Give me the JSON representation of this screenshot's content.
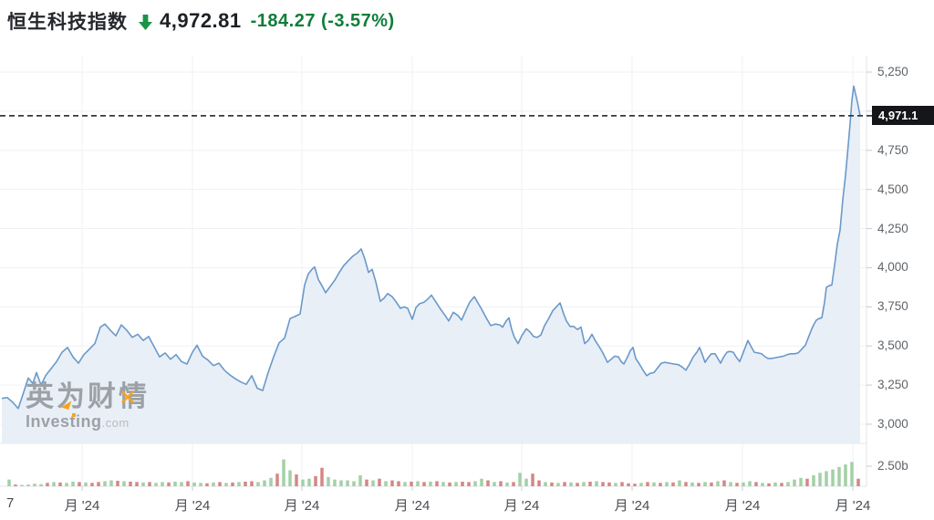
{
  "header": {
    "title": "恒生科技指数",
    "price": "4,972.81",
    "change": "-184.27 (-3.57%)",
    "arrow_icon": "down-arrow",
    "arrow_color": "#1c9447",
    "change_color": "#0f7d3a"
  },
  "watermark": {
    "cn": "英为财情",
    "brand": "Investing",
    "tld": ".com",
    "accent_color": "#f6a41f"
  },
  "chart_data": {
    "type": "area",
    "title": "恒生科技指数",
    "legend_position": "none",
    "grid": true,
    "y_axis": {
      "side": "right",
      "ticks": [
        "5,250",
        "5,000",
        "4,750",
        "4,500",
        "4,250",
        "4,000",
        "3,750",
        "3,500",
        "3,250",
        "3,000"
      ],
      "values": [
        5250,
        5000,
        4750,
        4500,
        4250,
        4000,
        3750,
        3500,
        3250,
        3000
      ],
      "range_top": 5250,
      "range_bottom": 3000
    },
    "x_axis": {
      "labels": [
        "7",
        "月 '24",
        "月 '24",
        "月 '24",
        "月 '24",
        "月 '24",
        "月 '24",
        "月 '24",
        "月 '24"
      ]
    },
    "volume_axis": {
      "tick_label": "2.50b",
      "tick_value_b": 2.5
    },
    "last_price": {
      "label": "4,971.1",
      "value": 4971.1
    },
    "colors": {
      "line": "#6a99c9",
      "fill": "#e9eff7",
      "dashed": "#33383d",
      "volume_up": "#a3d0a6",
      "volume_down": "#d68585",
      "grid": "#eff1f4",
      "border": "#e2e4e8",
      "tick": "#c8ccd2"
    },
    "price_series": {
      "name": "恒生科技指数",
      "points": [
        [
          2,
          3165
        ],
        [
          8,
          3170
        ],
        [
          14,
          3140
        ],
        [
          20,
          3100
        ],
        [
          26,
          3205
        ],
        [
          31,
          3295
        ],
        [
          36,
          3260
        ],
        [
          40,
          3330
        ],
        [
          45,
          3250
        ],
        [
          50,
          3310
        ],
        [
          56,
          3355
        ],
        [
          62,
          3400
        ],
        [
          68,
          3460
        ],
        [
          74,
          3490
        ],
        [
          80,
          3430
        ],
        [
          86,
          3390
        ],
        [
          92,
          3445
        ],
        [
          98,
          3480
        ],
        [
          104,
          3515
        ],
        [
          110,
          3620
        ],
        [
          115,
          3640
        ],
        [
          121,
          3600
        ],
        [
          127,
          3565
        ],
        [
          133,
          3635
        ],
        [
          139,
          3600
        ],
        [
          145,
          3555
        ],
        [
          151,
          3575
        ],
        [
          157,
          3535
        ],
        [
          163,
          3560
        ],
        [
          169,
          3495
        ],
        [
          175,
          3430
        ],
        [
          181,
          3455
        ],
        [
          187,
          3415
        ],
        [
          193,
          3445
        ],
        [
          199,
          3400
        ],
        [
          205,
          3385
        ],
        [
          211,
          3460
        ],
        [
          216,
          3505
        ],
        [
          222,
          3435
        ],
        [
          228,
          3410
        ],
        [
          234,
          3375
        ],
        [
          240,
          3390
        ],
        [
          246,
          3345
        ],
        [
          252,
          3315
        ],
        [
          258,
          3290
        ],
        [
          264,
          3270
        ],
        [
          270,
          3255
        ],
        [
          276,
          3310
        ],
        [
          282,
          3230
        ],
        [
          288,
          3215
        ],
        [
          294,
          3330
        ],
        [
          300,
          3430
        ],
        [
          306,
          3520
        ],
        [
          312,
          3550
        ],
        [
          318,
          3675
        ],
        [
          324,
          3690
        ],
        [
          329,
          3705
        ],
        [
          334,
          3890
        ],
        [
          338,
          3960
        ],
        [
          342,
          3990
        ],
        [
          345,
          4005
        ],
        [
          349,
          3925
        ],
        [
          353,
          3885
        ],
        [
          357,
          3840
        ],
        [
          362,
          3880
        ],
        [
          367,
          3920
        ],
        [
          372,
          3970
        ],
        [
          377,
          4015
        ],
        [
          382,
          4045
        ],
        [
          387,
          4075
        ],
        [
          392,
          4095
        ],
        [
          396,
          4120
        ],
        [
          400,
          4055
        ],
        [
          404,
          3970
        ],
        [
          408,
          3990
        ],
        [
          412,
          3910
        ],
        [
          417,
          3785
        ],
        [
          421,
          3805
        ],
        [
          425,
          3835
        ],
        [
          430,
          3815
        ],
        [
          435,
          3775
        ],
        [
          439,
          3740
        ],
        [
          443,
          3750
        ],
        [
          447,
          3740
        ],
        [
          452,
          3670
        ],
        [
          456,
          3745
        ],
        [
          460,
          3770
        ],
        [
          465,
          3780
        ],
        [
          469,
          3800
        ],
        [
          473,
          3825
        ],
        [
          478,
          3780
        ],
        [
          483,
          3735
        ],
        [
          488,
          3695
        ],
        [
          492,
          3660
        ],
        [
          497,
          3715
        ],
        [
          502,
          3695
        ],
        [
          506,
          3665
        ],
        [
          511,
          3730
        ],
        [
          515,
          3780
        ],
        [
          520,
          3815
        ],
        [
          524,
          3775
        ],
        [
          528,
          3735
        ],
        [
          533,
          3680
        ],
        [
          538,
          3630
        ],
        [
          543,
          3640
        ],
        [
          548,
          3635
        ],
        [
          551,
          3620
        ],
        [
          555,
          3660
        ],
        [
          558,
          3680
        ],
        [
          561,
          3605
        ],
        [
          564,
          3555
        ],
        [
          568,
          3515
        ],
        [
          572,
          3565
        ],
        [
          577,
          3610
        ],
        [
          581,
          3590
        ],
        [
          585,
          3560
        ],
        [
          589,
          3555
        ],
        [
          593,
          3570
        ],
        [
          597,
          3630
        ],
        [
          601,
          3670
        ],
        [
          606,
          3725
        ],
        [
          610,
          3750
        ],
        [
          614,
          3775
        ],
        [
          618,
          3705
        ],
        [
          621,
          3660
        ],
        [
          625,
          3625
        ],
        [
          629,
          3625
        ],
        [
          633,
          3605
        ],
        [
          637,
          3620
        ],
        [
          641,
          3515
        ],
        [
          645,
          3535
        ],
        [
          649,
          3575
        ],
        [
          653,
          3530
        ],
        [
          657,
          3495
        ],
        [
          661,
          3455
        ],
        [
          666,
          3395
        ],
        [
          670,
          3415
        ],
        [
          674,
          3435
        ],
        [
          678,
          3430
        ],
        [
          681,
          3400
        ],
        [
          684,
          3385
        ],
        [
          688,
          3430
        ],
        [
          691,
          3470
        ],
        [
          694,
          3490
        ],
        [
          697,
          3420
        ],
        [
          701,
          3385
        ],
        [
          705,
          3345
        ],
        [
          709,
          3310
        ],
        [
          713,
          3325
        ],
        [
          717,
          3330
        ],
        [
          721,
          3360
        ],
        [
          725,
          3390
        ],
        [
          729,
          3395
        ],
        [
          734,
          3390
        ],
        [
          739,
          3385
        ],
        [
          744,
          3380
        ],
        [
          748,
          3365
        ],
        [
          752,
          3345
        ],
        [
          756,
          3385
        ],
        [
          760,
          3430
        ],
        [
          764,
          3460
        ],
        [
          767,
          3490
        ],
        [
          770,
          3445
        ],
        [
          773,
          3395
        ],
        [
          777,
          3430
        ],
        [
          780,
          3450
        ],
        [
          784,
          3450
        ],
        [
          787,
          3420
        ],
        [
          790,
          3390
        ],
        [
          793,
          3425
        ],
        [
          797,
          3460
        ],
        [
          800,
          3465
        ],
        [
          804,
          3460
        ],
        [
          807,
          3430
        ],
        [
          811,
          3400
        ],
        [
          814,
          3445
        ],
        [
          817,
          3490
        ],
        [
          820,
          3535
        ],
        [
          824,
          3490
        ],
        [
          827,
          3460
        ],
        [
          831,
          3455
        ],
        [
          835,
          3450
        ],
        [
          839,
          3430
        ],
        [
          842,
          3420
        ],
        [
          846,
          3420
        ],
        [
          850,
          3425
        ],
        [
          855,
          3430
        ],
        [
          859,
          3435
        ],
        [
          863,
          3445
        ],
        [
          867,
          3450
        ],
        [
          871,
          3450
        ],
        [
          875,
          3455
        ],
        [
          879,
          3480
        ],
        [
          883,
          3505
        ],
        [
          886,
          3550
        ],
        [
          889,
          3595
        ],
        [
          892,
          3635
        ],
        [
          895,
          3665
        ],
        [
          898,
          3675
        ],
        [
          901,
          3680
        ],
        [
          904,
          3780
        ],
        [
          906,
          3875
        ],
        [
          909,
          3885
        ],
        [
          912,
          3890
        ],
        [
          915,
          4015
        ],
        [
          918,
          4150
        ],
        [
          921,
          4240
        ],
        [
          924,
          4435
        ],
        [
          927,
          4590
        ],
        [
          930,
          4785
        ],
        [
          932,
          4920
        ],
        [
          934,
          5070
        ],
        [
          936,
          5160
        ],
        [
          938,
          5110
        ],
        [
          940,
          5060
        ],
        [
          943,
          4971
        ]
      ]
    },
    "volume_bars": [
      [
        0.8,
        "g"
      ],
      [
        0.2,
        "r"
      ],
      [
        0.15,
        "g"
      ],
      [
        0.2,
        "g"
      ],
      [
        0.3,
        "g"
      ],
      [
        0.25,
        "g"
      ],
      [
        0.4,
        "r"
      ],
      [
        0.5,
        "g"
      ],
      [
        0.45,
        "r"
      ],
      [
        0.4,
        "g"
      ],
      [
        0.55,
        "g"
      ],
      [
        0.5,
        "r"
      ],
      [
        0.45,
        "g"
      ],
      [
        0.4,
        "r"
      ],
      [
        0.5,
        "r"
      ],
      [
        0.6,
        "g"
      ],
      [
        0.7,
        "g"
      ],
      [
        0.65,
        "r"
      ],
      [
        0.6,
        "g"
      ],
      [
        0.55,
        "r"
      ],
      [
        0.5,
        "r"
      ],
      [
        0.45,
        "g"
      ],
      [
        0.5,
        "r"
      ],
      [
        0.4,
        "g"
      ],
      [
        0.5,
        "g"
      ],
      [
        0.45,
        "r"
      ],
      [
        0.55,
        "g"
      ],
      [
        0.5,
        "g"
      ],
      [
        0.6,
        "r"
      ],
      [
        0.45,
        "g"
      ],
      [
        0.4,
        "g"
      ],
      [
        0.35,
        "r"
      ],
      [
        0.45,
        "g"
      ],
      [
        0.5,
        "r"
      ],
      [
        0.4,
        "g"
      ],
      [
        0.45,
        "r"
      ],
      [
        0.5,
        "g"
      ],
      [
        0.55,
        "r"
      ],
      [
        0.6,
        "r"
      ],
      [
        0.5,
        "g"
      ],
      [
        0.7,
        "g"
      ],
      [
        1.0,
        "g"
      ],
      [
        1.5,
        "r"
      ],
      [
        3.2,
        "g"
      ],
      [
        1.9,
        "g"
      ],
      [
        1.4,
        "r"
      ],
      [
        0.8,
        "g"
      ],
      [
        0.9,
        "g"
      ],
      [
        1.2,
        "r"
      ],
      [
        2.2,
        "r"
      ],
      [
        1.1,
        "g"
      ],
      [
        0.8,
        "g"
      ],
      [
        0.7,
        "g"
      ],
      [
        0.7,
        "g"
      ],
      [
        0.6,
        "g"
      ],
      [
        1.3,
        "g"
      ],
      [
        0.8,
        "r"
      ],
      [
        0.7,
        "g"
      ],
      [
        0.9,
        "r"
      ],
      [
        0.6,
        "g"
      ],
      [
        0.7,
        "r"
      ],
      [
        0.6,
        "r"
      ],
      [
        0.5,
        "g"
      ],
      [
        0.55,
        "r"
      ],
      [
        0.6,
        "g"
      ],
      [
        0.5,
        "r"
      ],
      [
        0.55,
        "g"
      ],
      [
        0.6,
        "r"
      ],
      [
        0.5,
        "g"
      ],
      [
        0.45,
        "r"
      ],
      [
        0.5,
        "g"
      ],
      [
        0.55,
        "r"
      ],
      [
        0.5,
        "r"
      ],
      [
        0.6,
        "g"
      ],
      [
        0.9,
        "g"
      ],
      [
        0.7,
        "r"
      ],
      [
        0.5,
        "g"
      ],
      [
        0.6,
        "r"
      ],
      [
        0.45,
        "g"
      ],
      [
        0.5,
        "r"
      ],
      [
        1.6,
        "g"
      ],
      [
        0.9,
        "g"
      ],
      [
        1.5,
        "r"
      ],
      [
        0.7,
        "r"
      ],
      [
        0.5,
        "g"
      ],
      [
        0.45,
        "r"
      ],
      [
        0.4,
        "g"
      ],
      [
        0.5,
        "r"
      ],
      [
        0.45,
        "g"
      ],
      [
        0.4,
        "r"
      ],
      [
        0.5,
        "g"
      ],
      [
        0.55,
        "r"
      ],
      [
        0.6,
        "g"
      ],
      [
        0.5,
        "r"
      ],
      [
        0.45,
        "r"
      ],
      [
        0.4,
        "g"
      ],
      [
        0.5,
        "r"
      ],
      [
        0.35,
        "r"
      ],
      [
        0.3,
        "r"
      ],
      [
        0.4,
        "g"
      ],
      [
        0.5,
        "r"
      ],
      [
        0.45,
        "g"
      ],
      [
        0.4,
        "r"
      ],
      [
        0.5,
        "g"
      ],
      [
        0.45,
        "r"
      ],
      [
        0.7,
        "g"
      ],
      [
        0.5,
        "r"
      ],
      [
        0.45,
        "g"
      ],
      [
        0.4,
        "r"
      ],
      [
        0.5,
        "g"
      ],
      [
        0.45,
        "r"
      ],
      [
        0.6,
        "g"
      ],
      [
        0.7,
        "r"
      ],
      [
        0.5,
        "g"
      ],
      [
        0.4,
        "r"
      ],
      [
        0.45,
        "g"
      ],
      [
        0.6,
        "g"
      ],
      [
        0.5,
        "r"
      ],
      [
        0.4,
        "g"
      ],
      [
        0.35,
        "r"
      ],
      [
        0.45,
        "g"
      ],
      [
        0.4,
        "r"
      ],
      [
        0.5,
        "g"
      ],
      [
        0.8,
        "g"
      ],
      [
        1.0,
        "g"
      ],
      [
        0.9,
        "r"
      ],
      [
        1.3,
        "g"
      ],
      [
        1.6,
        "g"
      ],
      [
        1.8,
        "g"
      ],
      [
        2.0,
        "g"
      ],
      [
        2.3,
        "g"
      ],
      [
        2.6,
        "g"
      ],
      [
        2.9,
        "g"
      ],
      [
        0.9,
        "r"
      ]
    ]
  }
}
